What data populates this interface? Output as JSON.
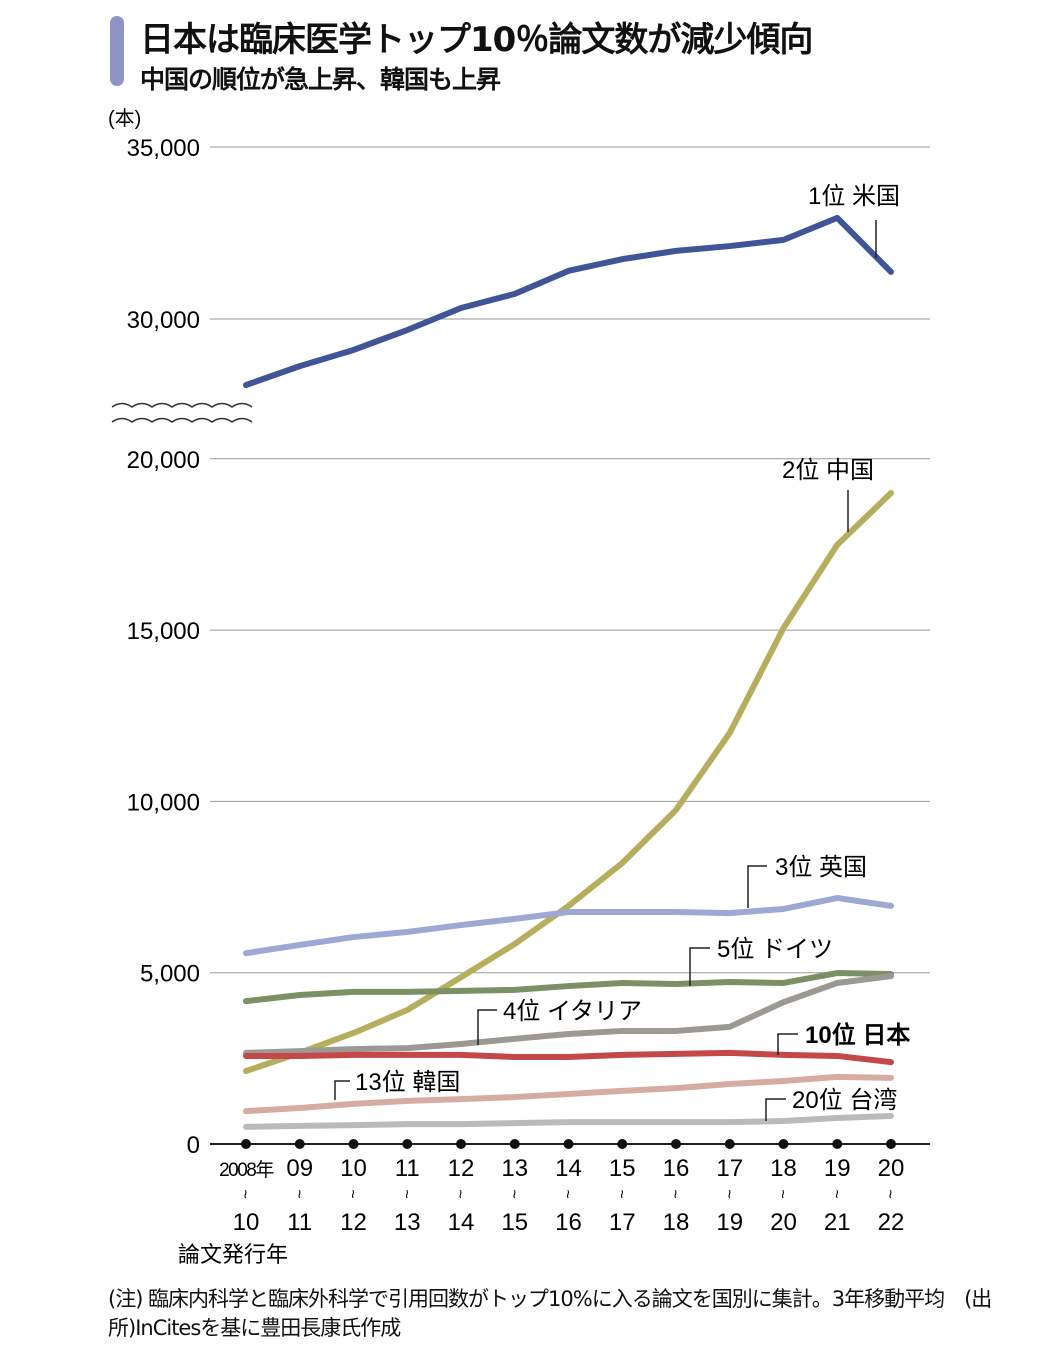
{
  "chart_data": {
    "type": "line",
    "title": "日本は臨床医学トップ10％論文数が減少傾向",
    "subtitle": "中国の順位が急上昇、韓国も上昇",
    "ylabel": "(本)",
    "xlabel": "論文発行年",
    "ylim": [
      0,
      35000
    ],
    "axis_break": [
      20000,
      27000
    ],
    "yticks": [
      "0",
      "5,000",
      "10,000",
      "15,000",
      "20,000",
      "30,000",
      "35,000"
    ],
    "ytick_values": [
      0,
      5000,
      10000,
      15000,
      20000,
      30000,
      35000
    ],
    "x_top": [
      "2008年",
      "09",
      "10",
      "11",
      "12",
      "13",
      "14",
      "15",
      "16",
      "17",
      "18",
      "19",
      "20"
    ],
    "x_tilde": "~",
    "x_bottom": [
      "10",
      "11",
      "12",
      "13",
      "14",
      "15",
      "16",
      "17",
      "18",
      "19",
      "20",
      "21",
      "22"
    ],
    "grid": true,
    "series": [
      {
        "name": "1位 米国",
        "color": "#3f5597",
        "values": [
          28080,
          28630,
          29100,
          29680,
          30320,
          30730,
          31400,
          31740,
          31980,
          32120,
          32300,
          32940,
          31370
        ]
      },
      {
        "name": "2位 中国",
        "color": "#b5ae5d",
        "values": [
          2130,
          2660,
          3240,
          3910,
          4870,
          5840,
          6950,
          8200,
          9750,
          12000,
          15060,
          17490,
          19000
        ]
      },
      {
        "name": "3位 英国",
        "color": "#9ea8d4",
        "values": [
          5570,
          5810,
          6040,
          6190,
          6390,
          6570,
          6770,
          6770,
          6770,
          6740,
          6860,
          7180,
          6950
        ]
      },
      {
        "name": "5位 ドイツ",
        "color": "#7b9064",
        "values": [
          4170,
          4350,
          4440,
          4440,
          4470,
          4500,
          4610,
          4700,
          4670,
          4730,
          4700,
          4990,
          4960
        ]
      },
      {
        "name": "4位 イタリア",
        "color": "#9c9893",
        "values": [
          2660,
          2710,
          2770,
          2800,
          2920,
          3070,
          3210,
          3300,
          3300,
          3420,
          4140,
          4700,
          4900
        ]
      },
      {
        "name": "10位 日本",
        "color": "#c4484a",
        "values": [
          2570,
          2570,
          2600,
          2600,
          2600,
          2540,
          2540,
          2600,
          2630,
          2660,
          2600,
          2570,
          2390
        ]
      },
      {
        "name": "13位 韓国",
        "color": "#d6aca2",
        "values": [
          960,
          1050,
          1170,
          1260,
          1310,
          1370,
          1460,
          1550,
          1630,
          1750,
          1840,
          1960,
          1930
        ]
      },
      {
        "name": "20位 台湾",
        "color": "#bababa",
        "values": [
          500,
          530,
          550,
          580,
          580,
          610,
          640,
          640,
          640,
          640,
          670,
          760,
          820
        ]
      }
    ]
  },
  "note": "(注) 臨床内科学と臨床外科学で引用回数がトップ10%に入る論文を国別に集計。3年移動平均　(出所)InCitesを基に豊田長康氏作成"
}
